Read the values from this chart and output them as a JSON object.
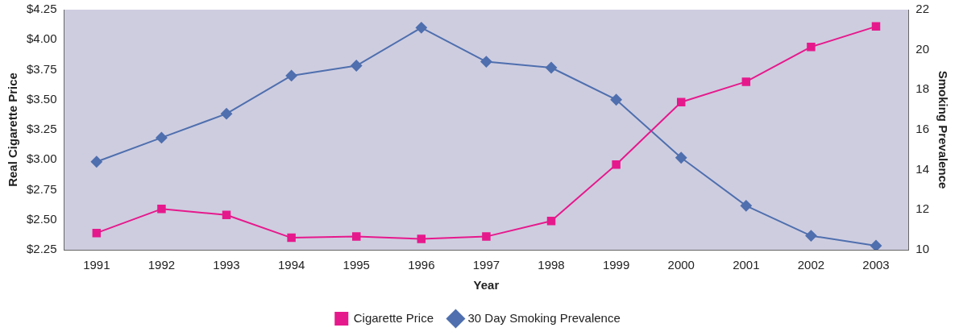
{
  "chart_data": {
    "type": "line",
    "xlabel": "Year",
    "ylabel": "Real Cigarette Price",
    "y2label": "Smoking Prevalence",
    "categories": [
      "1991",
      "1992",
      "1993",
      "1994",
      "1995",
      "1996",
      "1997",
      "1998",
      "1999",
      "2000",
      "2001",
      "2002",
      "2003"
    ],
    "series": [
      {
        "name": "Cigarette Price",
        "color": "#e6198c",
        "marker": "square",
        "values": [
          2.39,
          2.59,
          2.54,
          2.35,
          2.36,
          2.34,
          2.36,
          2.49,
          2.96,
          3.48,
          3.65,
          3.94,
          4.11
        ]
      },
      {
        "name": "30 Day Smoking Prevalence",
        "color": "#4f6fae",
        "marker": "diamond",
        "axis": "y2",
        "values": [
          14.4,
          15.6,
          16.8,
          18.7,
          19.2,
          21.1,
          19.4,
          19.1,
          17.5,
          14.6,
          12.2,
          10.7,
          10.2
        ]
      }
    ],
    "ylim": [
      2.25,
      4.25
    ],
    "yticks": [
      {
        "value": 2.25,
        "label": "$2.25"
      },
      {
        "value": 2.5,
        "label": "$2.50"
      },
      {
        "value": 2.75,
        "label": "$2.75"
      },
      {
        "value": 3,
        "label": "$3.00"
      },
      {
        "value": 3.25,
        "label": "$3.25"
      },
      {
        "value": 3.5,
        "label": "$3.50"
      },
      {
        "value": 3.75,
        "label": "$3.75"
      },
      {
        "value": 4,
        "label": "$4.00"
      },
      {
        "value": 4.25,
        "label": "$4.25"
      }
    ],
    "y2lim": [
      10,
      22
    ],
    "y2ticks": [
      10,
      12,
      14,
      16,
      18,
      20,
      22
    ],
    "grid": false,
    "legend": "bottom",
    "line_style": "solid"
  }
}
